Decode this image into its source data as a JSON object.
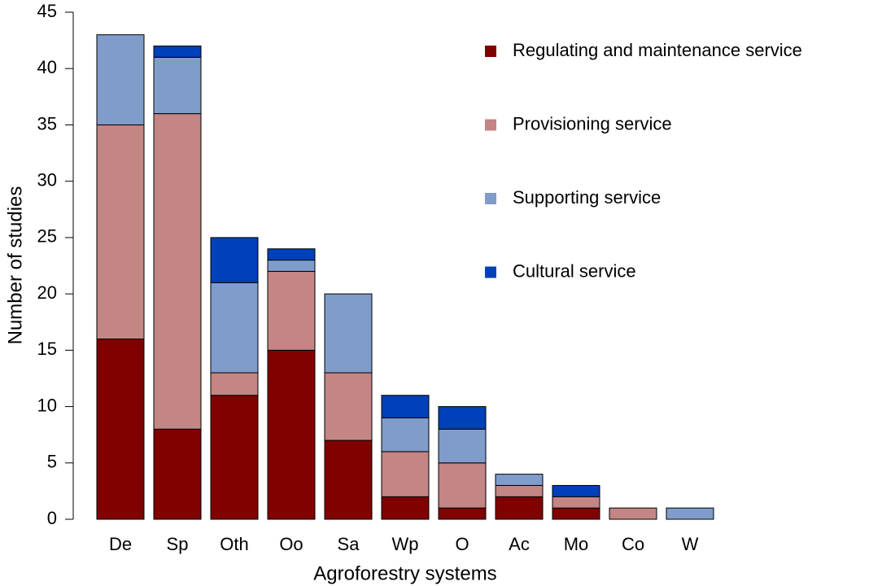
{
  "chart_data": {
    "type": "stacked_bar",
    "x_label": "Agroforestry systems",
    "y_label": "Number of studies",
    "categories": [
      "De",
      "Sp",
      "Oth",
      "Oo",
      "Sa",
      "Wp",
      "O",
      "Ac",
      "Mo",
      "Co",
      "W"
    ],
    "series": [
      {
        "name": "Regulating and maintenance service",
        "color": "#800000",
        "values": [
          16,
          8,
          11,
          15,
          7,
          2,
          1,
          2,
          1,
          0,
          0
        ]
      },
      {
        "name": "Provisioning service",
        "color": "#c48585",
        "values": [
          19,
          28,
          2,
          7,
          6,
          4,
          4,
          1,
          1,
          1,
          0
        ]
      },
      {
        "name": "Supporting service",
        "color": "#7f9ccb",
        "values": [
          8,
          5,
          8,
          1,
          7,
          3,
          3,
          1,
          0,
          0,
          1
        ]
      },
      {
        "name": "Cultural service",
        "color": "#0040b8",
        "values": [
          0,
          1,
          4,
          1,
          0,
          2,
          2,
          0,
          1,
          0,
          0
        ]
      }
    ],
    "ylim": [
      0,
      45
    ],
    "yticks": [
      0,
      5,
      10,
      15,
      20,
      25,
      30,
      35,
      40,
      45
    ],
    "legend": "top-right"
  }
}
